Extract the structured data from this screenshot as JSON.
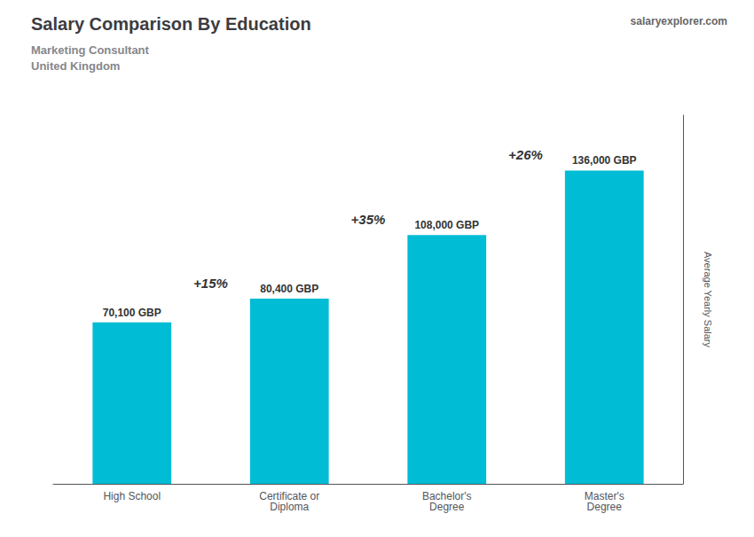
{
  "chart_data": {
    "type": "bar",
    "title": "Salary Comparison By Education",
    "subtitle": "Marketing Consultant",
    "location": "United Kingdom",
    "watermark": "salaryexplorer.com",
    "ylabel": "Average Yearly Salary",
    "categories": [
      "High School",
      "Certificate or\nDiploma",
      "Bachelor's\nDegree",
      "Master's\nDegree"
    ],
    "values": [
      70100,
      80400,
      108000,
      136000
    ],
    "value_labels": [
      "70,100 GBP",
      "80,400 GBP",
      "108,000 GBP",
      "136,000 GBP"
    ],
    "data_labels": true,
    "annotations": [
      "+15%",
      "+35%",
      "+26%"
    ],
    "color": "#00bcd4",
    "ylim": [
      0,
      160000
    ],
    "tick_labels": "x",
    "grid": false
  }
}
